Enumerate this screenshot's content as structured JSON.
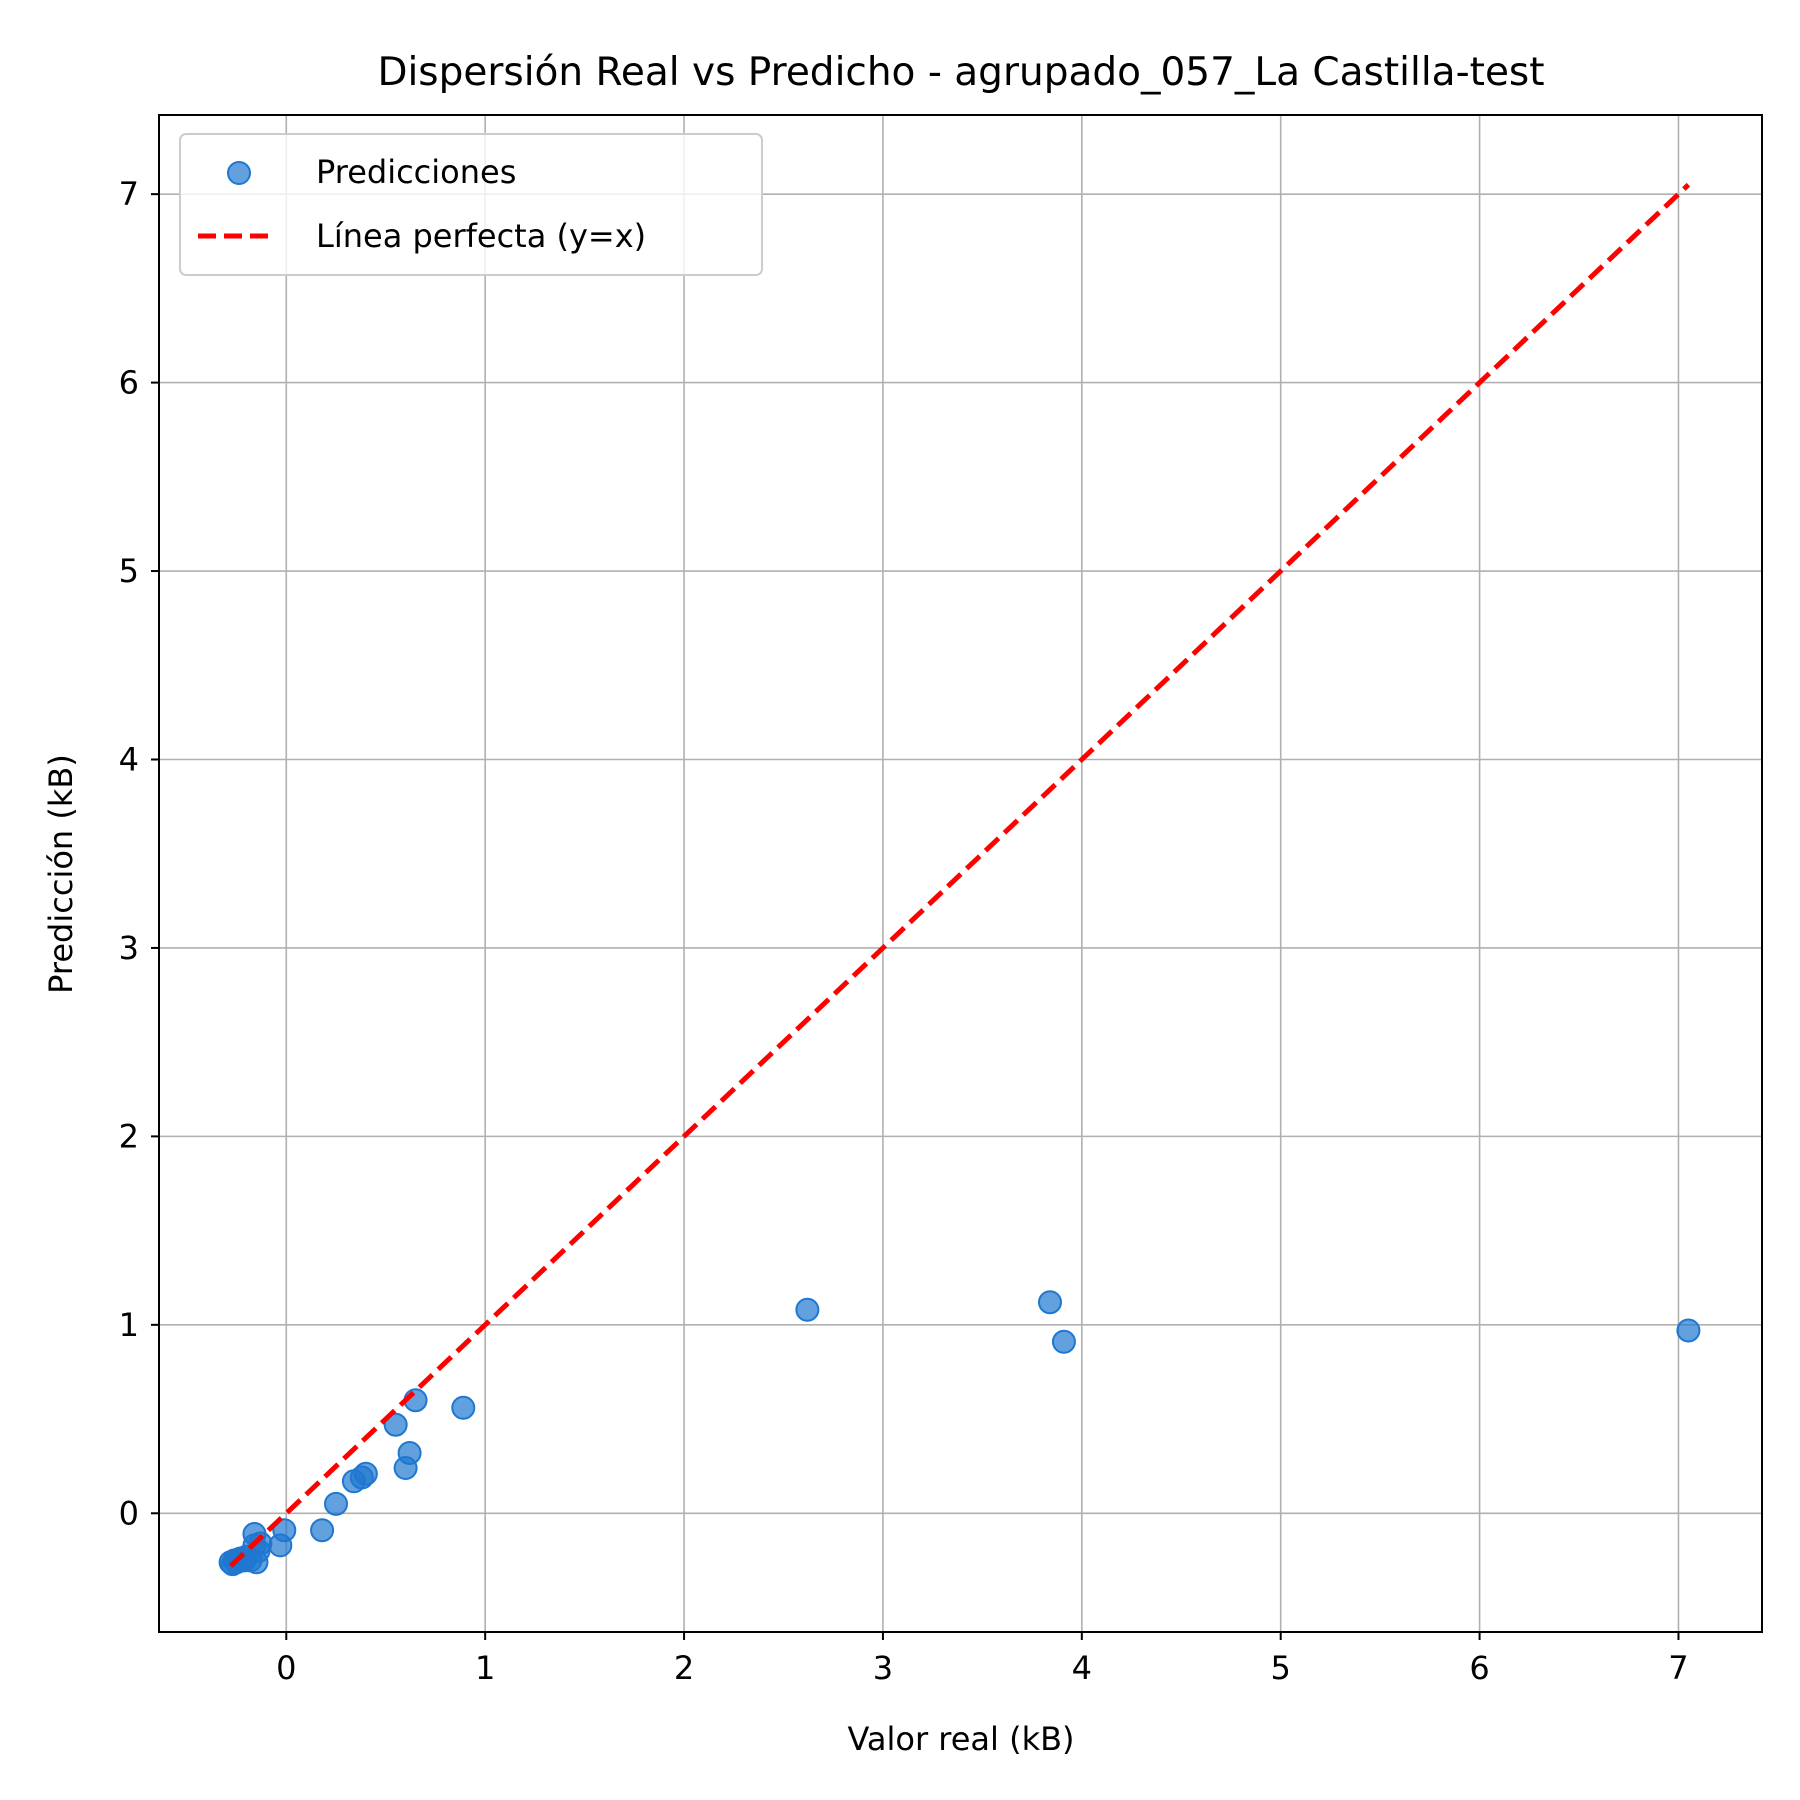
{
  "chart_data": {
    "type": "scatter",
    "title": "Dispersión Real vs Predicho - agrupado_057_La Castilla-test",
    "xlabel": "Valor real (kB)",
    "ylabel": "Predicción (kB)",
    "xlim": [
      -0.64,
      7.42
    ],
    "ylim": [
      -0.63,
      7.42
    ],
    "xticks": [
      0,
      1,
      2,
      3,
      4,
      5,
      6,
      7
    ],
    "yticks": [
      0,
      1,
      2,
      3,
      4,
      5,
      6,
      7
    ],
    "grid": true,
    "legend_position": "top-left",
    "series": [
      {
        "name": "Predicciones",
        "kind": "scatter",
        "color": "#1f77d0",
        "x": [
          -0.28,
          -0.27,
          -0.26,
          -0.25,
          -0.23,
          -0.21,
          -0.2,
          -0.18,
          -0.16,
          -0.15,
          -0.14,
          -0.13,
          -0.16,
          -0.03,
          -0.01,
          0.18,
          0.25,
          0.34,
          0.38,
          0.4,
          0.55,
          0.6,
          0.62,
          0.65,
          0.89,
          2.62,
          3.84,
          3.91,
          7.05
        ],
        "y": [
          -0.26,
          -0.27,
          -0.25,
          -0.26,
          -0.24,
          -0.25,
          -0.23,
          -0.25,
          -0.11,
          -0.26,
          -0.2,
          -0.16,
          -0.17,
          -0.17,
          -0.09,
          -0.09,
          0.05,
          0.17,
          0.19,
          0.21,
          0.47,
          0.24,
          0.32,
          0.6,
          0.56,
          1.08,
          1.12,
          0.91,
          0.97
        ]
      },
      {
        "name": "Línea perfecta (y=x)",
        "kind": "line",
        "style": "dashed",
        "color": "#ff0000",
        "x": [
          -0.28,
          7.05
        ],
        "y": [
          -0.28,
          7.05
        ]
      }
    ]
  }
}
